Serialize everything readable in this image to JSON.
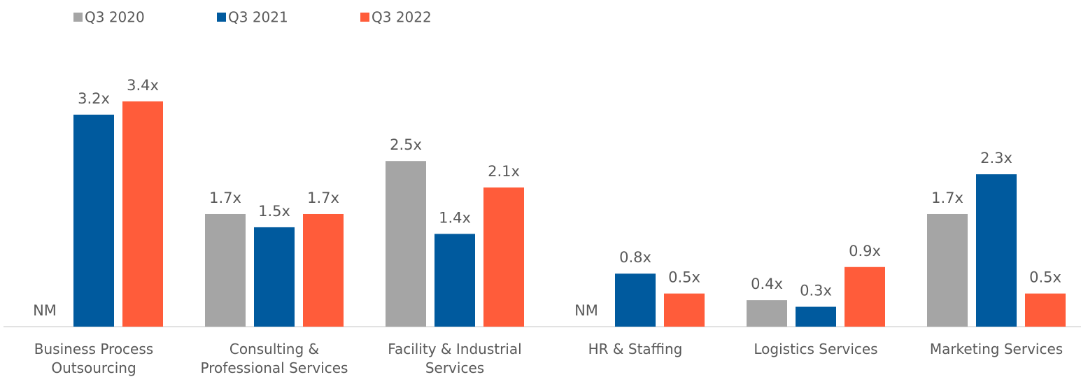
{
  "chart_data": {
    "type": "bar",
    "categories": [
      "Business Process Outsourcing",
      "Consulting & Professional Services",
      "Facility & Industrial Services",
      "HR & Staffing",
      "Logistics Services",
      "Marketing Services"
    ],
    "series": [
      {
        "name": "Q3 2020",
        "color": "#a5a5a5",
        "values": [
          null,
          1.7,
          2.5,
          null,
          0.4,
          1.7
        ],
        "value_labels": [
          "NM",
          "1.7x",
          "2.5x",
          "NM",
          "0.4x",
          "1.7x"
        ]
      },
      {
        "name": "Q3 2021",
        "color": "#005a9e",
        "values": [
          3.2,
          1.5,
          1.4,
          0.8,
          0.3,
          2.3
        ],
        "value_labels": [
          "3.2x",
          "1.5x",
          "1.4x",
          "0.8x",
          "0.3x",
          "2.3x"
        ]
      },
      {
        "name": "Q3 2022",
        "color": "#ff5c3a",
        "values": [
          3.4,
          1.7,
          2.1,
          0.5,
          0.9,
          0.5
        ],
        "value_labels": [
          "3.4x",
          "1.7x",
          "2.1x",
          "0.5x",
          "0.9x",
          "0.5x"
        ]
      }
    ],
    "ylim": [
      0,
      3.5
    ]
  }
}
